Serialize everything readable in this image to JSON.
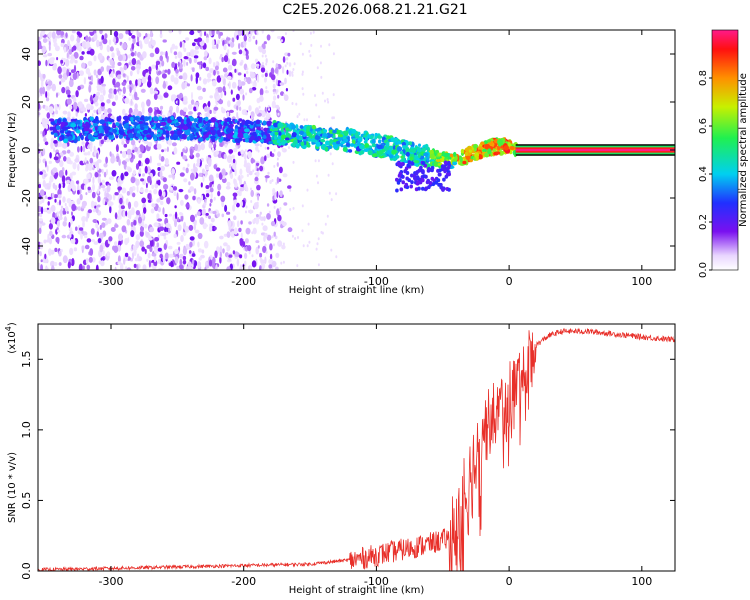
{
  "title": "C2E5.2026.068.21.21.G21",
  "chart_data": [
    {
      "type": "heatmap",
      "title": "C2E5.2026.068.21.21.G21",
      "xlabel": "Height of straight line (km)",
      "ylabel": "Frequency (Hz)",
      "xlim": [
        -355,
        125
      ],
      "ylim": [
        -50,
        50
      ],
      "xticks": [
        -300,
        -200,
        -100,
        0,
        100
      ],
      "yticks": [
        -40,
        -20,
        0,
        20,
        40
      ],
      "colorbar": {
        "label": "Normalized spectral amplitude",
        "range": [
          0.0,
          1.0
        ],
        "ticks": [
          "0.0",
          "0.2",
          "0.4",
          "0.6",
          "0.8"
        ],
        "tick_values": [
          0.0,
          0.2,
          0.4,
          0.6,
          0.8
        ]
      },
      "ridge_x": [
        -345,
        -300,
        -250,
        -200,
        -160,
        -120,
        -90,
        -60,
        -45,
        -30,
        -15,
        0,
        5,
        125
      ],
      "ridge_y": [
        8,
        9,
        9,
        8,
        6,
        4,
        1,
        -3,
        -5,
        -2,
        1,
        2,
        0,
        0
      ]
    },
    {
      "type": "line",
      "xlabel": "Height of straight line (km)",
      "ylabel": "SNR (10 * v/v)",
      "exponent_label": "(x10",
      "exponent_power": "4",
      "exponent_close": ")",
      "xlim": [
        -355,
        125
      ],
      "ylim": [
        0.0,
        1.75
      ],
      "xticks": [
        -300,
        -200,
        -100,
        0,
        100
      ],
      "yticks": [
        "0.0",
        "0.5",
        "1.0",
        "1.5"
      ],
      "ytick_values": [
        0.0,
        0.5,
        1.0,
        1.5
      ],
      "series": [
        {
          "name": "SNR",
          "color": "#e8302a",
          "x": [
            -355,
            -300,
            -250,
            -200,
            -150,
            -120,
            -100,
            -80,
            -60,
            -45,
            -40,
            -35,
            -30,
            -25,
            -20,
            -10,
            0,
            10,
            20,
            30,
            40,
            60,
            80,
            100,
            125
          ],
          "y": [
            0.01,
            0.02,
            0.03,
            0.04,
            0.05,
            0.08,
            0.12,
            0.16,
            0.2,
            0.24,
            0.3,
            0.48,
            0.65,
            0.85,
            1.0,
            1.15,
            1.28,
            1.42,
            1.6,
            1.67,
            1.7,
            1.7,
            1.68,
            1.66,
            1.64
          ]
        }
      ]
    }
  ]
}
